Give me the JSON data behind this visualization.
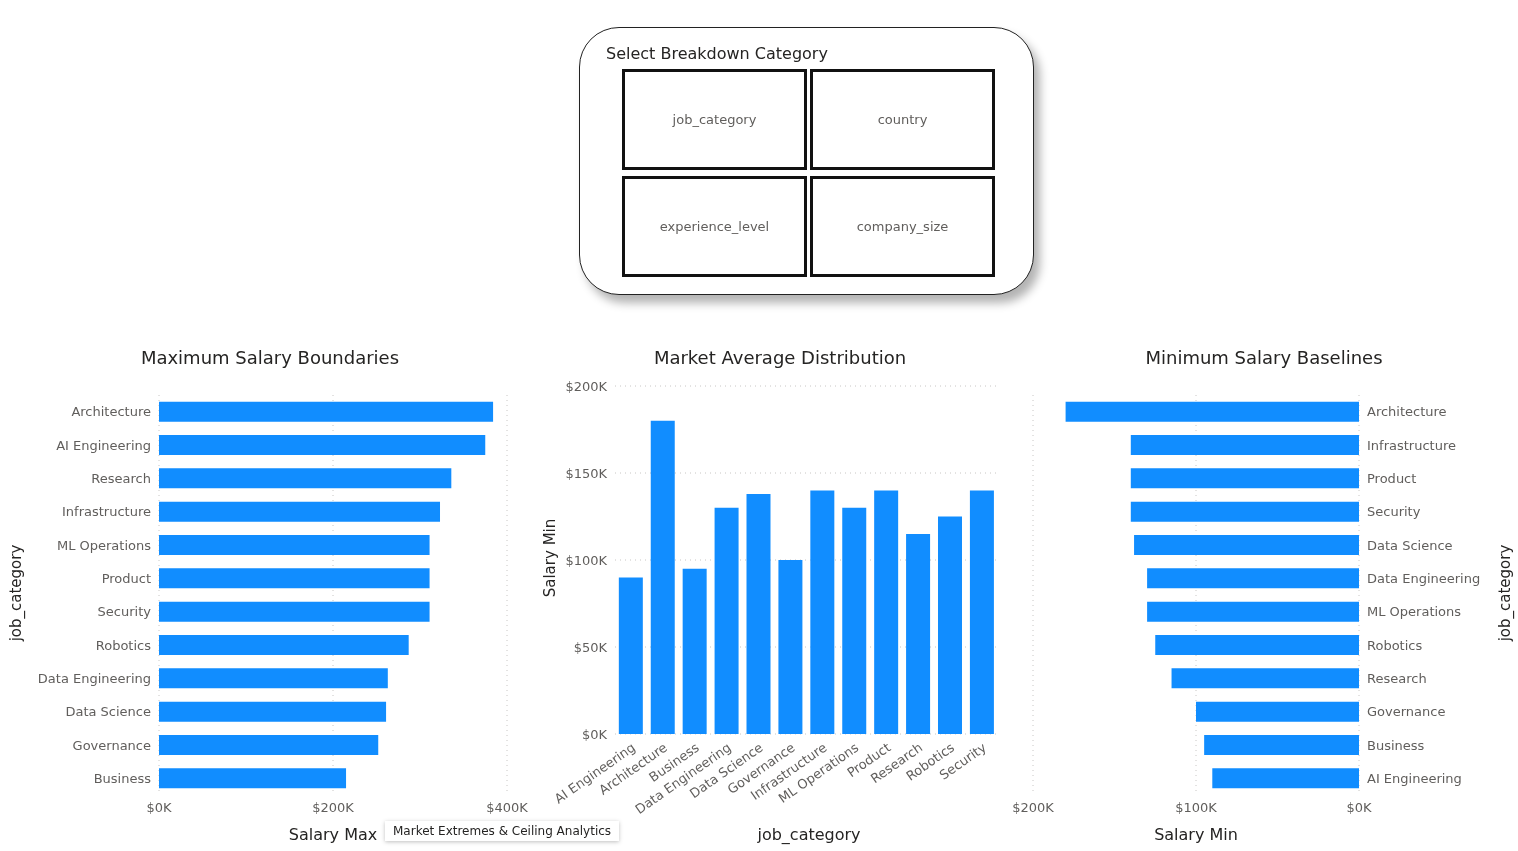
{
  "chart_data": [
    {
      "type": "other",
      "title": "Select Breakdown Category",
      "annotations": [
        "job_category",
        "country",
        "experience_level",
        "company_size"
      ]
    },
    {
      "type": "bar",
      "orientation": "horizontal",
      "title": "Maximum Salary Boundaries",
      "xlabel": "Salary Max",
      "ylabel": "job_category",
      "categories": [
        "Architecture",
        "AI Engineering",
        "Research",
        "Infrastructure",
        "ML Operations",
        "Product",
        "Security",
        "Robotics",
        "Data Engineering",
        "Data Science",
        "Governance",
        "Business"
      ],
      "values": [
        384,
        375,
        336,
        323,
        311,
        311,
        311,
        287,
        263,
        261,
        252,
        215
      ],
      "color": "#118dff",
      "xlim": [
        0,
        400
      ],
      "xticks": [
        {
          "value": 0,
          "label": "$0K"
        },
        {
          "value": 200,
          "label": "$200K"
        },
        {
          "value": 400,
          "label": "$400K"
        }
      ],
      "grid": "x",
      "annotations": [
        "Market Extremes & Ceiling Analytics"
      ]
    },
    {
      "type": "bar",
      "title": "Market Average Distribution",
      "xlabel": "job_category",
      "ylabel": "Salary Min",
      "categories": [
        "AI Engineering",
        "Architecture",
        "Business",
        "Data Engineering",
        "Data Science",
        "Governance",
        "Infrastructure",
        "ML Operations",
        "Product",
        "Research",
        "Robotics",
        "Security"
      ],
      "values": [
        90,
        180,
        95,
        130,
        138,
        100,
        140,
        130,
        140,
        115,
        125,
        140
      ],
      "color": "#118dff",
      "ylim": [
        0,
        200
      ],
      "yticks": [
        {
          "value": 0,
          "label": "$0K"
        },
        {
          "value": 50,
          "label": "$50K"
        },
        {
          "value": 100,
          "label": "$100K"
        },
        {
          "value": 150,
          "label": "$150K"
        },
        {
          "value": 200,
          "label": "$200K"
        }
      ],
      "grid": "y"
    },
    {
      "type": "bar",
      "orientation": "horizontal",
      "title": "Minimum Salary Baselines",
      "xlabel": "Salary Min",
      "ylabel": "job_category",
      "categories": [
        "Architecture",
        "Infrastructure",
        "Product",
        "Security",
        "Data Science",
        "Data Engineering",
        "ML Operations",
        "Robotics",
        "Research",
        "Governance",
        "Business",
        "AI Engineering"
      ],
      "values": [
        180,
        140,
        140,
        140,
        138,
        130,
        130,
        125,
        115,
        100,
        95,
        90
      ],
      "color": "#118dff",
      "xlim": [
        200,
        0
      ],
      "xticks": [
        {
          "value": 200,
          "label": "$200K"
        },
        {
          "value": 100,
          "label": "$100K"
        },
        {
          "value": 0,
          "label": "$0K"
        }
      ],
      "grid": "x"
    }
  ]
}
